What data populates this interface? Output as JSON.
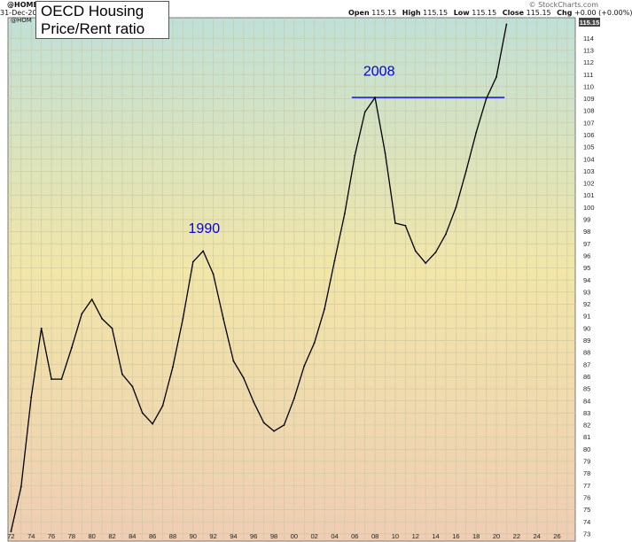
{
  "header": {
    "symbol": "@HOME",
    "date": "31-Dec-20",
    "legend_symbol": "@HOM",
    "open_label": "Open",
    "open_value": "115.15",
    "high_label": "High",
    "high_value": "115.15",
    "low_label": "Low",
    "low_value": "115.15",
    "close_label": "Close",
    "close_value": "115.15",
    "chg_label": "Chg",
    "chg_value": "+0.00 (+0.00%)",
    "watermark": "© StockCharts.com",
    "last_price": "115.15"
  },
  "colors": {
    "background_top": "#bfe0d8",
    "background_mid": "#f2e6a8",
    "background_bottom": "#efcdb4",
    "grid": "#c9c9a0",
    "line": "#000000",
    "annotation": "#0000dd",
    "price_tag": "#444444"
  },
  "chart_data": {
    "type": "line",
    "title_lines": [
      "OECD Housing",
      "Price/Rent ratio"
    ],
    "xlabel": "",
    "ylabel": "",
    "xlim": [
      1971.7,
      2027.8
    ],
    "ylim": [
      72.4,
      115.7
    ],
    "grid": true,
    "y_ticks": [
      73,
      74,
      75,
      76,
      77,
      78,
      79,
      80,
      81,
      82,
      83,
      84,
      85,
      86,
      87,
      88,
      89,
      90,
      91,
      92,
      93,
      94,
      95,
      96,
      97,
      98,
      99,
      100,
      101,
      102,
      103,
      104,
      105,
      106,
      107,
      108,
      109,
      110,
      111,
      112,
      113,
      114
    ],
    "x_ticks": [
      {
        "year": 1972,
        "label": "72"
      },
      {
        "year": 1974,
        "label": "74"
      },
      {
        "year": 1976,
        "label": "76"
      },
      {
        "year": 1978,
        "label": "78"
      },
      {
        "year": 1980,
        "label": "80"
      },
      {
        "year": 1982,
        "label": "82"
      },
      {
        "year": 1984,
        "label": "84"
      },
      {
        "year": 1986,
        "label": "86"
      },
      {
        "year": 1988,
        "label": "88"
      },
      {
        "year": 1990,
        "label": "90"
      },
      {
        "year": 1992,
        "label": "92"
      },
      {
        "year": 1994,
        "label": "94"
      },
      {
        "year": 1996,
        "label": "96"
      },
      {
        "year": 1998,
        "label": "98"
      },
      {
        "year": 2000,
        "label": "00"
      },
      {
        "year": 2002,
        "label": "02"
      },
      {
        "year": 2004,
        "label": "04"
      },
      {
        "year": 2006,
        "label": "06"
      },
      {
        "year": 2008,
        "label": "08"
      },
      {
        "year": 2010,
        "label": "10"
      },
      {
        "year": 2012,
        "label": "12"
      },
      {
        "year": 2014,
        "label": "14"
      },
      {
        "year": 2016,
        "label": "16"
      },
      {
        "year": 2018,
        "label": "18"
      },
      {
        "year": 2020,
        "label": "20"
      },
      {
        "year": 2022,
        "label": "22"
      },
      {
        "year": 2024,
        "label": "24"
      },
      {
        "year": 2026,
        "label": "26"
      }
    ],
    "series": [
      {
        "x": [
          1972,
          1973,
          1974,
          1975,
          1976,
          1977,
          1978,
          1979,
          1980,
          1981,
          1982,
          1983,
          1984,
          1985,
          1986,
          1987,
          1988,
          1989,
          1990,
          1991,
          1992,
          1993,
          1994,
          1995,
          1996,
          1997,
          1998,
          1999,
          2000,
          2001,
          2002,
          2003,
          2004,
          2005,
          2006,
          2007,
          2008,
          2009,
          2010,
          2011,
          2012,
          2013,
          2014,
          2015,
          2016,
          2017,
          2018,
          2019,
          2020,
          2021
        ],
        "values": [
          73.2,
          76.9,
          84.3,
          90.0,
          85.8,
          85.8,
          88.4,
          91.2,
          92.4,
          90.8,
          90.0,
          86.2,
          85.2,
          83.0,
          82.1,
          83.6,
          86.8,
          90.8,
          95.5,
          96.4,
          94.5,
          90.8,
          87.3,
          85.9,
          83.9,
          82.2,
          81.5,
          82.0,
          84.2,
          86.9,
          88.8,
          91.6,
          95.6,
          99.5,
          104.3,
          107.9,
          109.1,
          104.5,
          98.7,
          98.5,
          96.4,
          95.4,
          96.3,
          97.8,
          100.0,
          103.0,
          106.2,
          109.0,
          110.8,
          115.15
        ]
      }
    ],
    "annotations": [
      {
        "label": "1990",
        "year": 1991.1,
        "value": 97.9
      },
      {
        "label": "2008",
        "year": 2008.4,
        "value": 110.9
      }
    ],
    "reference_lines": [
      {
        "value": 109.1,
        "x_start": 2005.7,
        "x_end": 2020.8
      }
    ]
  }
}
